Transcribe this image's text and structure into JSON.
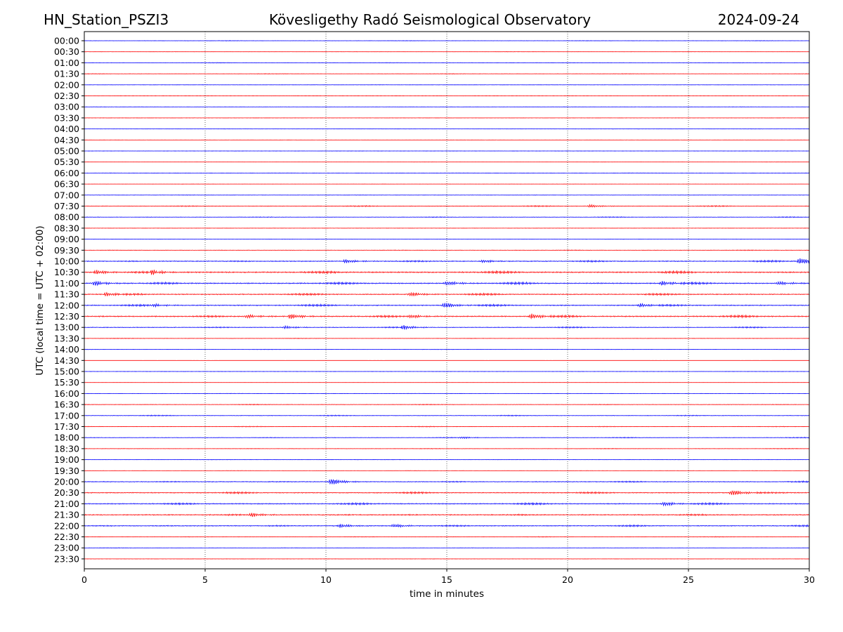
{
  "header": {
    "station": "HN_Station_PSZI3",
    "observatory": "Kövesligethy Radó Seismological Observatory",
    "date": "2024-09-24"
  },
  "chart_data": {
    "type": "line",
    "title": "Kövesligethy Radó Seismological Observatory",
    "xlabel": "time in minutes",
    "ylabel": "UTC (local time = UTC + 02:00)",
    "xlim": [
      0,
      30
    ],
    "x_ticks": [
      "0",
      "5",
      "10",
      "15",
      "20",
      "25",
      "30"
    ],
    "x_tick_values": [
      0,
      5,
      10,
      15,
      20,
      25,
      30
    ],
    "grid_x": [
      5,
      10,
      15,
      20,
      25
    ],
    "row_labels": [
      "00:00",
      "00:30",
      "01:00",
      "01:30",
      "02:00",
      "02:30",
      "03:00",
      "03:30",
      "04:00",
      "04:30",
      "05:00",
      "05:30",
      "06:00",
      "06:30",
      "07:00",
      "07:30",
      "08:00",
      "08:30",
      "09:00",
      "09:30",
      "10:00",
      "10:30",
      "11:00",
      "11:30",
      "12:00",
      "12:30",
      "13:00",
      "13:30",
      "14:00",
      "14:30",
      "15:00",
      "15:30",
      "16:00",
      "16:30",
      "17:00",
      "17:30",
      "18:00",
      "18:30",
      "19:00",
      "19:30",
      "20:00",
      "20:30",
      "21:00",
      "21:30",
      "22:00",
      "22:30",
      "23:00",
      "23:30"
    ],
    "series_colors": [
      "#0000ff",
      "#ff0000"
    ],
    "noise_levels": [
      0.25,
      0.15,
      0.3,
      0.25,
      0.2,
      0.1,
      0.2,
      0.1,
      0.15,
      0.1,
      0.1,
      0.1,
      0.2,
      0.1,
      0.25,
      0.5,
      0.4,
      0.15,
      0.15,
      0.35,
      0.8,
      1.1,
      1.0,
      0.9,
      0.9,
      1.0,
      0.6,
      0.3,
      0.2,
      0.05,
      0.1,
      0.05,
      0.2,
      0.4,
      0.45,
      0.35,
      0.4,
      0.3,
      0.2,
      0.15,
      0.7,
      0.8,
      0.9,
      0.9,
      0.8,
      0.3,
      0.2,
      0.1
    ],
    "events": [
      {
        "row": 20,
        "t": 29.6,
        "amp": 4.5
      },
      {
        "row": 20,
        "t": 10.8,
        "amp": 2.5
      },
      {
        "row": 20,
        "t": 16.5,
        "amp": 2.0
      },
      {
        "row": 21,
        "t": 0.5,
        "amp": 3.0
      },
      {
        "row": 21,
        "t": 2.8,
        "amp": 3.0
      },
      {
        "row": 22,
        "t": 0.4,
        "amp": 3.5
      },
      {
        "row": 22,
        "t": 15.0,
        "amp": 3.0
      },
      {
        "row": 22,
        "t": 23.9,
        "amp": 3.0
      },
      {
        "row": 22,
        "t": 28.7,
        "amp": 2.5
      },
      {
        "row": 23,
        "t": 13.5,
        "amp": 3.0
      },
      {
        "row": 23,
        "t": 0.9,
        "amp": 2.5
      },
      {
        "row": 24,
        "t": 14.9,
        "amp": 4.0
      },
      {
        "row": 24,
        "t": 23.0,
        "amp": 2.5
      },
      {
        "row": 24,
        "t": 2.8,
        "amp": 2.0
      },
      {
        "row": 25,
        "t": 8.5,
        "amp": 3.5
      },
      {
        "row": 25,
        "t": 18.5,
        "amp": 3.5
      },
      {
        "row": 25,
        "t": 13.5,
        "amp": 2.5
      },
      {
        "row": 25,
        "t": 6.7,
        "amp": 2.5
      },
      {
        "row": 26,
        "t": 13.2,
        "amp": 3.0
      },
      {
        "row": 26,
        "t": 8.3,
        "amp": 2.0
      },
      {
        "row": 40,
        "t": 10.2,
        "amp": 4.5
      },
      {
        "row": 41,
        "t": 26.8,
        "amp": 4.0
      },
      {
        "row": 42,
        "t": 24.0,
        "amp": 3.0
      },
      {
        "row": 43,
        "t": 6.9,
        "amp": 3.0
      },
      {
        "row": 44,
        "t": 10.6,
        "amp": 2.5
      },
      {
        "row": 44,
        "t": 12.8,
        "amp": 2.5
      },
      {
        "row": 15,
        "t": 20.9,
        "amp": 2.0
      },
      {
        "row": 36,
        "t": 15.6,
        "amp": 1.5
      }
    ]
  }
}
